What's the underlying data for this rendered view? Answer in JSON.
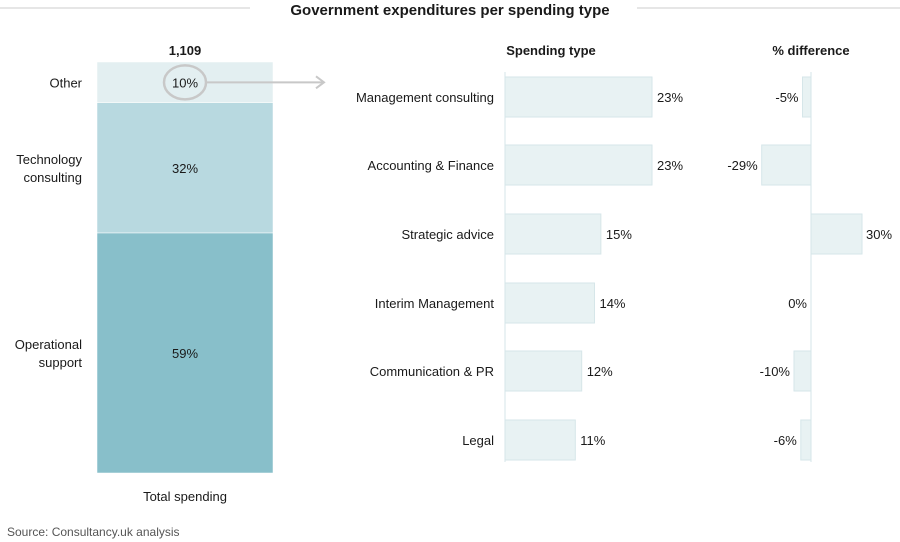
{
  "chart_data": [
    {
      "type": "bar",
      "subtype": "stacked-100",
      "title": "Government expenditures per spending type",
      "total_label": "1,109",
      "xlabel": "Total spending",
      "categories": [
        "Total spending"
      ],
      "series": [
        {
          "name": "Operational support",
          "label_lines": [
            "Operational",
            "support"
          ],
          "values": [
            59
          ],
          "color": "#88bfca"
        },
        {
          "name": "Technology consulting",
          "label_lines": [
            "Technology",
            "consulting"
          ],
          "values": [
            32
          ],
          "color": "#b8d9e0"
        },
        {
          "name": "Other",
          "label_lines": [
            "Other"
          ],
          "values": [
            10
          ],
          "color": "#e3eff1"
        }
      ],
      "highlight": "Other",
      "unit": "%"
    },
    {
      "type": "bar",
      "orientation": "horizontal",
      "title": "Spending type",
      "categories": [
        "Management consulting",
        "Accounting & Finance",
        "Strategic advice",
        "Interim Management",
        "Communication & PR",
        "Legal"
      ],
      "values": [
        23,
        23,
        15,
        14,
        12,
        11
      ],
      "unit": "%",
      "xlim": [
        0,
        30
      ],
      "color": "#e8f2f3"
    },
    {
      "type": "bar",
      "orientation": "horizontal",
      "title": "% difference",
      "categories": [
        "Management consulting",
        "Accounting & Finance",
        "Strategic advice",
        "Interim Management",
        "Communication & PR",
        "Legal"
      ],
      "values": [
        -5,
        -29,
        30,
        0,
        -10,
        -6
      ],
      "unit": "%",
      "xlim": [
        -30,
        30
      ],
      "color": "#e8f2f3"
    }
  ],
  "source": "Source: Consultancy.uk analysis",
  "colors": {
    "text": "#1a1a1a",
    "muted": "#555555",
    "rule": "#cccccc",
    "bar_stroke": "#d6e6e9",
    "arrow": "#c8c8c8"
  }
}
